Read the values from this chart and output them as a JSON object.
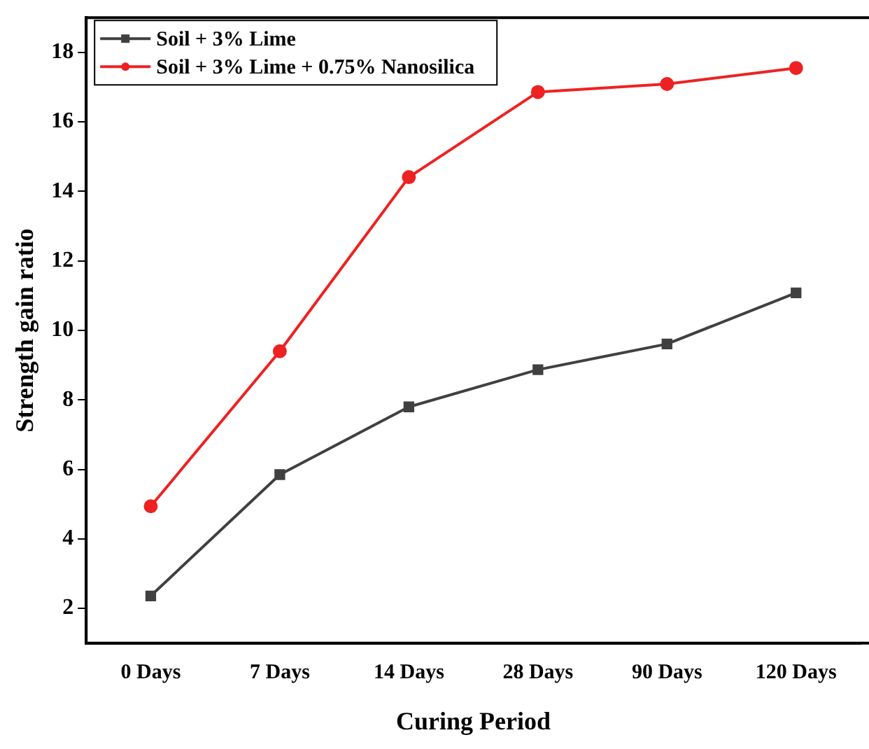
{
  "chart_data": {
    "type": "line",
    "xlabel": "Curing Period",
    "ylabel": "Strength gain ratio",
    "categories": [
      "0 Days",
      "7 Days",
      "14 Days",
      "28 Days",
      "90 Days",
      "120 Days"
    ],
    "series": [
      {
        "name": "Soil + 3% Lime",
        "color": "#404040",
        "marker": "square",
        "values": [
          2.36,
          5.85,
          7.8,
          8.87,
          9.61,
          11.08
        ]
      },
      {
        "name": "Soil + 3% Lime + 0.75% Nanosilica",
        "color": "#ee2222",
        "marker": "circle",
        "values": [
          4.94,
          9.4,
          14.41,
          16.86,
          17.09,
          17.55
        ]
      }
    ],
    "ylim": [
      1,
      19
    ],
    "yticks": [
      2,
      4,
      6,
      8,
      10,
      12,
      14,
      16,
      18
    ],
    "grid": false,
    "legend": "top left",
    "line_style": "solid"
  }
}
